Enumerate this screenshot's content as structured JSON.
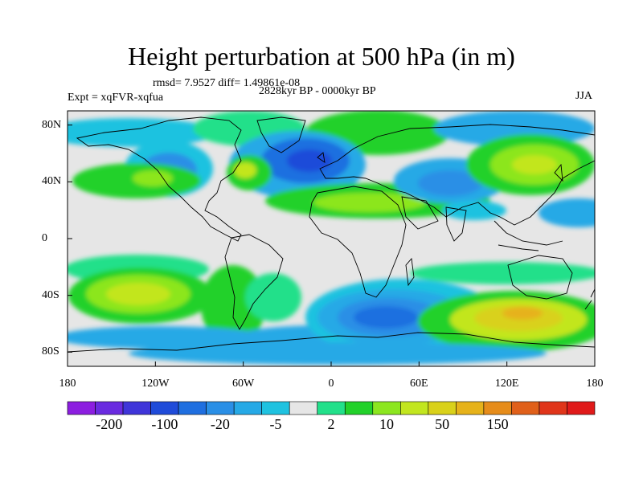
{
  "title": "Height perturbation at 500 hPa (in m)",
  "stats_line": "rmsd= 7.9527 diff= 1.49861e-08",
  "period_line": "2828kyr BP - 0000kyr BP",
  "experiment_line": "Expt = xqFVR-xqfua",
  "season": "JJA",
  "x_axis": {
    "ticks": [
      "180",
      "120W",
      "60W",
      "0",
      "60E",
      "120E",
      "180"
    ]
  },
  "y_axis": {
    "ticks": [
      "80N",
      "40N",
      "0",
      "40S",
      "80S"
    ]
  },
  "colorbar": {
    "colors": [
      "#8c1ee0",
      "#6a2be0",
      "#3f35d9",
      "#1f4bd9",
      "#1f6fe0",
      "#2a8fe6",
      "#26a9e6",
      "#1fc2e0",
      "#e6e6e6",
      "#22e08a",
      "#22d12a",
      "#8ce61f",
      "#c2e61f",
      "#d9d11a",
      "#e6b21a",
      "#e68c1a",
      "#e0601a",
      "#e0351a",
      "#e01a1a"
    ],
    "labels": [
      {
        "text": "-200",
        "boundary": 1
      },
      {
        "text": "-100",
        "boundary": 3
      },
      {
        "text": "-20",
        "boundary": 5
      },
      {
        "text": "-5",
        "boundary": 7
      },
      {
        "text": "2",
        "boundary": 9
      },
      {
        "text": "10",
        "boundary": 11
      },
      {
        "text": "50",
        "boundary": 13
      },
      {
        "text": "150",
        "boundary": 15
      }
    ]
  }
}
